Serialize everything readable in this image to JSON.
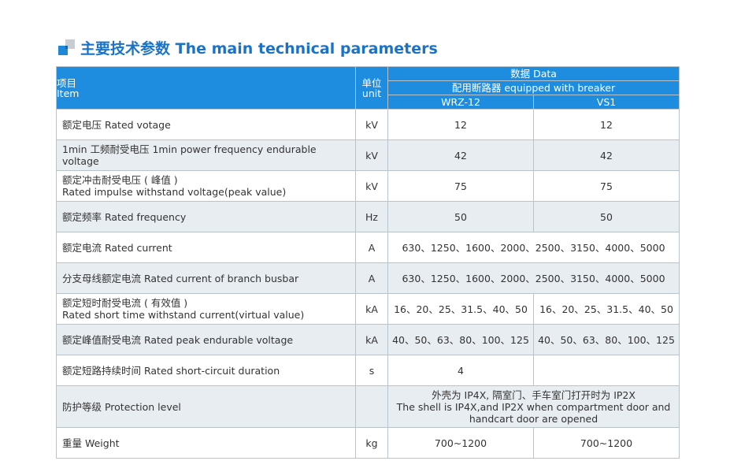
{
  "heading": {
    "icon": "blue-square-icon",
    "title": "主要技术参数 The main technical parameters",
    "color": "#1a73c6"
  },
  "table": {
    "header": {
      "item_cn": "项目",
      "item_en": "Item",
      "unit_cn": "单位",
      "unit_en": "unit",
      "data": "数据 Data",
      "breaker": "配用断路器 equipped with breaker",
      "col1": "WRZ-12",
      "col2": "VS1",
      "header_color": "#1e8de0"
    },
    "rows": [
      {
        "name": "额定电压 Rated votage",
        "unit": "kV",
        "v1": "12",
        "v2": "12"
      },
      {
        "name": "1min 工频耐受电压 1min power frequency endurable voltage",
        "unit": "kV",
        "v1": "42",
        "v2": "42"
      },
      {
        "name1": "额定冲击耐受电压 ( 峰值 )",
        "name2": "Rated impulse withstand voltage(peak value)",
        "unit": "kV",
        "v1": "75",
        "v2": "75"
      },
      {
        "name": "额定频率 Rated frequency",
        "unit": "Hz",
        "v1": "50",
        "v2": "50"
      },
      {
        "name": "额定电流 Rated current",
        "unit": "A",
        "v": "630、1250、1600、2000、2500、3150、4000、5000"
      },
      {
        "name": "分支母线额定电流 Rated current of branch busbar",
        "unit": "A",
        "v": "630、1250、1600、2000、2500、3150、4000、5000"
      },
      {
        "name1": "额定短时耐受电流 ( 有效值 )",
        "name2": "Rated short time withstand current(virtual value)",
        "unit": "kA",
        "v1": "16、20、25、31.5、40、50",
        "v2": "16、20、25、31.5、40、50"
      },
      {
        "name": "额定峰值耐受电流 Rated peak endurable voltage",
        "unit": "kA",
        "v1": "40、50、63、80、100、125",
        "v2": "40、50、63、80、100、125"
      },
      {
        "name": "额定短路持续时间 Rated short-circuit duration",
        "unit": "s",
        "v1": "4",
        "v2": ""
      },
      {
        "name": "防护等级 Protection level",
        "unit": "",
        "v_line1": "外壳为 IP4X, 隔室门、手车室门打开时为 IP2X",
        "v_line2": "The shell is IP4X,and IP2X when compartment door and",
        "v_line3": "handcart door are opened"
      },
      {
        "name": "重量 Weight",
        "unit": "kg",
        "v1": "700~1200",
        "v2": "700~1200"
      }
    ]
  }
}
